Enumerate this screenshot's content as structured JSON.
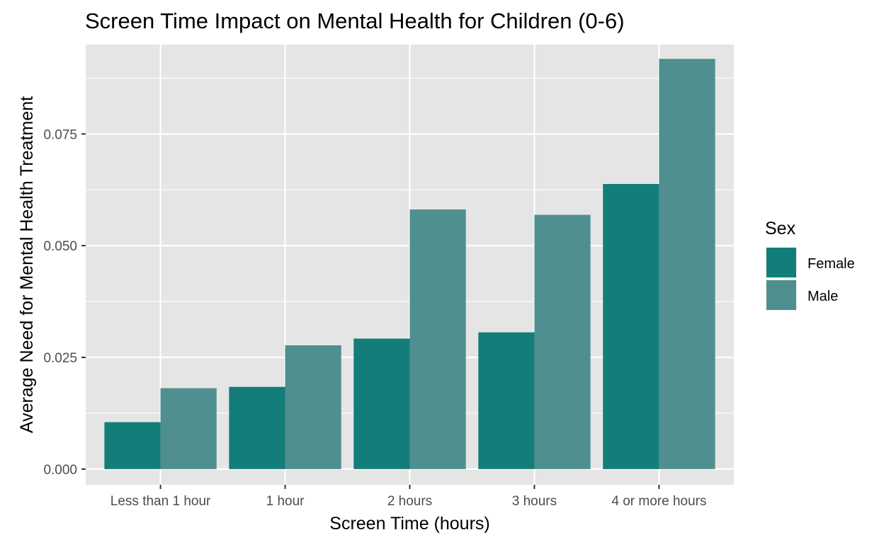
{
  "chart_data": {
    "type": "bar",
    "title": "Screen Time Impact on Mental Health for Children (0-6)",
    "xlabel": "Screen Time (hours)",
    "ylabel": "Average Need for Mental Health Treatment",
    "categories": [
      "Less than 1 hour",
      "1 hour",
      "2 hours",
      "3 hours",
      "4 or more hours"
    ],
    "series": [
      {
        "name": "Female",
        "color": "#137D79",
        "values": [
          0.0105,
          0.0184,
          0.0292,
          0.0306,
          0.0638
        ]
      },
      {
        "name": "Male",
        "color": "#508F8F",
        "values": [
          0.0181,
          0.0277,
          0.0581,
          0.0569,
          0.0918
        ]
      }
    ],
    "ylim": [
      -0.0035,
      0.095
    ],
    "yticks": [
      0,
      0.025,
      0.05,
      0.075
    ],
    "ytick_labels": [
      "0.000",
      "0.025",
      "0.050",
      "0.075"
    ],
    "legend": {
      "title": "Sex",
      "placement": "right"
    },
    "grid": true,
    "colors": {
      "panel_background": "#E5E5E5",
      "grid": "#FFFFFF"
    }
  }
}
